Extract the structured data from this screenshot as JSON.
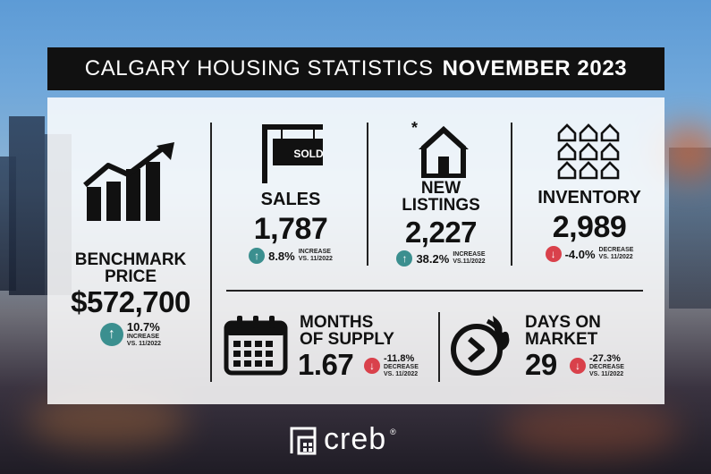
{
  "title": {
    "light": "CALGARY HOUSING STATISTICS",
    "bold": "NOVEMBER 2023"
  },
  "benchmark": {
    "label_line1": "BENCHMARK",
    "label_line2": "PRICE",
    "value": "$572,700",
    "change": "10.7%",
    "note_line1": "INCREASE",
    "note_line2": "VS. 11/2022",
    "direction": "up"
  },
  "sales": {
    "sign_text": "SOLD",
    "label": "SALES",
    "value": "1,787",
    "change": "8.8%",
    "note_line1": "INCREASE",
    "note_line2": "VS. 11/2022"
  },
  "new_listings": {
    "label_line1": "NEW",
    "label_line2": "LISTINGS",
    "value": "2,227",
    "change": "38.2%",
    "note_line1": "INCREASE",
    "note_line2": "VS.11/2022"
  },
  "inventory": {
    "label": "INVENTORY",
    "value": "2,989",
    "change": "-4.0%",
    "note_line1": "DECREASE",
    "note_line2": "VS. 11/2022"
  },
  "months_supply": {
    "label_line1": "MONTHS",
    "label_line2": "OF SUPPLY",
    "value": "1.67",
    "change": "-11.8%",
    "note_line1": "DECREASE",
    "note_line2": "VS. 11/2022"
  },
  "days_on_market": {
    "label_line1": "DAYS ON",
    "label_line2": "MARKET",
    "value": "29",
    "change": "-27.3%",
    "note_line1": "DECREASE",
    "note_line2": "VS. 11/2022"
  },
  "brand": {
    "name": "creb",
    "reg": "®"
  },
  "arrows": {
    "up": "↑",
    "down": "↓"
  },
  "colors": {
    "up": "#3b8f8f",
    "down": "#d9414b",
    "title_bg": "#111111"
  },
  "icons": [
    "growth-chart-icon",
    "sold-sign-icon",
    "new-house-icon",
    "houses-grid-icon",
    "calendar-icon",
    "clock-fire-icon",
    "creb-logo-icon"
  ]
}
